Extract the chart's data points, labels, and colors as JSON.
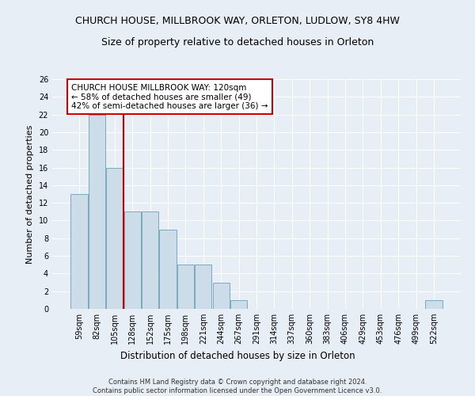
{
  "title": "CHURCH HOUSE, MILLBROOK WAY, ORLETON, LUDLOW, SY8 4HW",
  "subtitle": "Size of property relative to detached houses in Orleton",
  "xlabel": "Distribution of detached houses by size in Orleton",
  "ylabel": "Number of detached properties",
  "categories": [
    "59sqm",
    "82sqm",
    "105sqm",
    "128sqm",
    "152sqm",
    "175sqm",
    "198sqm",
    "221sqm",
    "244sqm",
    "267sqm",
    "291sqm",
    "314sqm",
    "337sqm",
    "360sqm",
    "383sqm",
    "406sqm",
    "429sqm",
    "453sqm",
    "476sqm",
    "499sqm",
    "522sqm"
  ],
  "values": [
    13,
    22,
    16,
    11,
    11,
    9,
    5,
    5,
    3,
    1,
    0,
    0,
    0,
    0,
    0,
    0,
    0,
    0,
    0,
    0,
    1
  ],
  "bar_color": "#ccdce8",
  "bar_edge_color": "#7aaabf",
  "background_color": "#e8eef5",
  "grid_color": "#ffffff",
  "vline_x": 2.5,
  "vline_color": "#cc0000",
  "annotation_text": "CHURCH HOUSE MILLBROOK WAY: 120sqm\n← 58% of detached houses are smaller (49)\n42% of semi-detached houses are larger (36) →",
  "annotation_box_color": "#ffffff",
  "annotation_box_edge": "#cc0000",
  "ylim": [
    0,
    26
  ],
  "yticks": [
    0,
    2,
    4,
    6,
    8,
    10,
    12,
    14,
    16,
    18,
    20,
    22,
    24,
    26
  ],
  "footer": "Contains HM Land Registry data © Crown copyright and database right 2024.\nContains public sector information licensed under the Open Government Licence v3.0.",
  "title_fontsize": 9,
  "subtitle_fontsize": 9,
  "xlabel_fontsize": 8.5,
  "ylabel_fontsize": 8,
  "tick_fontsize": 7,
  "annotation_fontsize": 7.5,
  "footer_fontsize": 6
}
